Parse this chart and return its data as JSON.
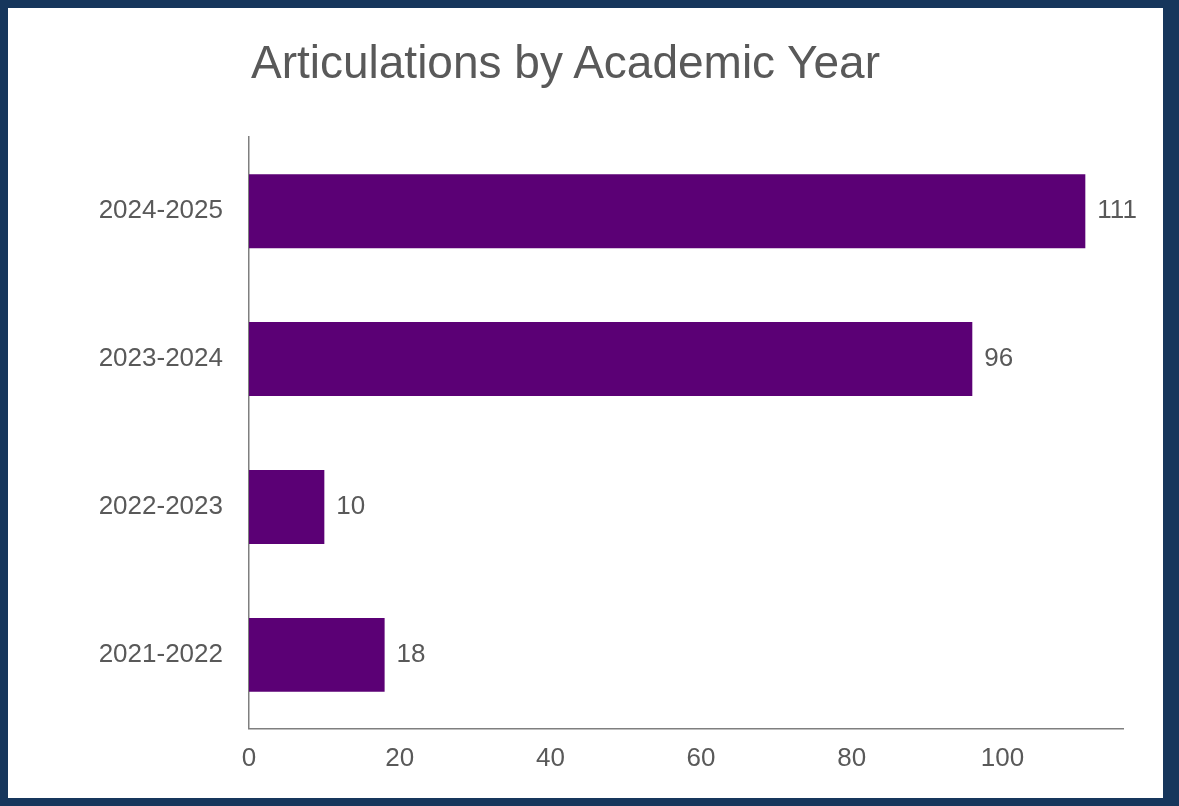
{
  "chart_data": {
    "type": "bar",
    "orientation": "horizontal",
    "title": "Articulations by Academic Year",
    "categories": [
      "2024-2025",
      "2023-2024",
      "2022-2023",
      "2021-2022"
    ],
    "values": [
      111,
      96,
      10,
      18
    ],
    "color": "#5b0075",
    "xlim": [
      0,
      116
    ],
    "xticks": [
      0,
      20,
      40,
      60,
      80,
      100
    ],
    "grid": false,
    "data_labels": true,
    "legend": false
  }
}
